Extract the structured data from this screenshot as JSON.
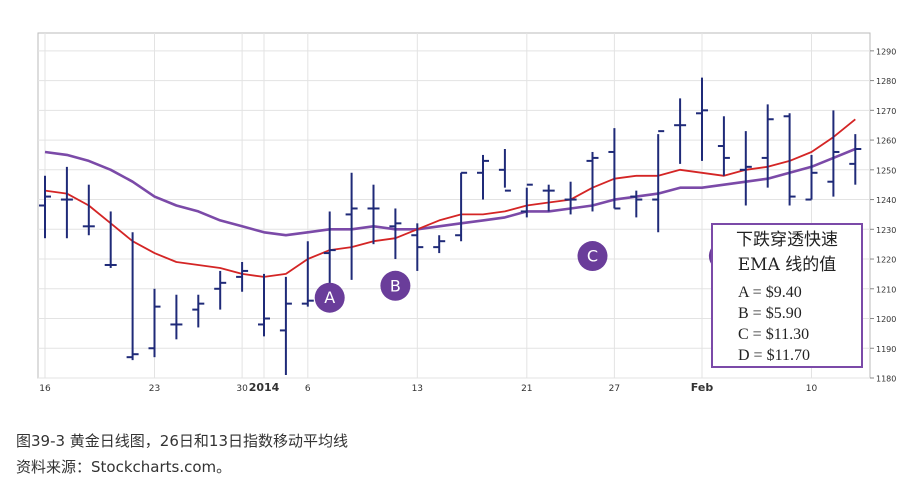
{
  "chart_data": {
    "type": "ohlc",
    "title": "",
    "y_axis": {
      "side": "right",
      "min": 1180,
      "max": 1296,
      "ticks": [
        1180,
        1190,
        1200,
        1210,
        1220,
        1230,
        1240,
        1250,
        1260,
        1270,
        1280,
        1290
      ]
    },
    "x_ticks": [
      {
        "label": "16",
        "bar": 0,
        "bold": false
      },
      {
        "label": "23",
        "bar": 5,
        "bold": false
      },
      {
        "label": "30",
        "bar": 9,
        "bold": false
      },
      {
        "label": "2014",
        "bar": 10,
        "bold": true
      },
      {
        "label": "6",
        "bar": 12,
        "bold": false
      },
      {
        "label": "13",
        "bar": 17,
        "bold": false
      },
      {
        "label": "21",
        "bar": 22,
        "bold": false
      },
      {
        "label": "27",
        "bar": 26,
        "bold": false
      },
      {
        "label": "Feb",
        "bar": 30,
        "bold": true
      },
      {
        "label": "10",
        "bar": 35,
        "bold": false
      }
    ],
    "bars": [
      {
        "o": 1238,
        "h": 1248,
        "l": 1227,
        "c": 1241
      },
      {
        "o": 1240,
        "h": 1251,
        "l": 1227,
        "c": 1240
      },
      {
        "o": 1231,
        "h": 1245,
        "l": 1228,
        "c": 1231
      },
      {
        "o": 1218,
        "h": 1236,
        "l": 1217,
        "c": 1218
      },
      {
        "o": 1187,
        "h": 1229,
        "l": 1186,
        "c": 1188
      },
      {
        "o": 1190,
        "h": 1210,
        "l": 1187,
        "c": 1204
      },
      {
        "o": 1198,
        "h": 1208,
        "l": 1193,
        "c": 1198
      },
      {
        "o": 1203,
        "h": 1208,
        "l": 1197,
        "c": 1205
      },
      {
        "o": 1210,
        "h": 1216,
        "l": 1203,
        "c": 1212
      },
      {
        "o": 1214,
        "h": 1219,
        "l": 1209,
        "c": 1216
      },
      {
        "o": 1198,
        "h": 1215,
        "l": 1194,
        "c": 1200
      },
      {
        "o": 1196,
        "h": 1214,
        "l": 1181,
        "c": 1205
      },
      {
        "o": 1205,
        "h": 1226,
        "l": 1204,
        "c": 1206
      },
      {
        "o": 1222,
        "h": 1236,
        "l": 1207,
        "c": 1223
      },
      {
        "o": 1235,
        "h": 1249,
        "l": 1213,
        "c": 1237
      },
      {
        "o": 1237,
        "h": 1245,
        "l": 1225,
        "c": 1237
      },
      {
        "o": 1231,
        "h": 1237,
        "l": 1220,
        "c": 1232
      },
      {
        "o": 1228,
        "h": 1232,
        "l": 1216,
        "c": 1224
      },
      {
        "o": 1224,
        "h": 1228,
        "l": 1222,
        "c": 1226
      },
      {
        "o": 1228,
        "h": 1249,
        "l": 1226,
        "c": 1249
      },
      {
        "o": 1249,
        "h": 1255,
        "l": 1240,
        "c": 1253
      },
      {
        "o": 1250,
        "h": 1257,
        "l": 1244,
        "c": 1243
      },
      {
        "o": 1236,
        "h": 1244,
        "l": 1234,
        "c": 1245
      },
      {
        "o": 1243,
        "h": 1245,
        "l": 1236,
        "c": 1243
      },
      {
        "o": 1240,
        "h": 1246,
        "l": 1235,
        "c": 1240
      },
      {
        "o": 1253,
        "h": 1256,
        "l": 1236,
        "c": 1254
      },
      {
        "o": 1256,
        "h": 1264,
        "l": 1237,
        "c": 1237
      },
      {
        "o": 1241,
        "h": 1243,
        "l": 1234,
        "c": 1240
      },
      {
        "o": 1240,
        "h": 1262,
        "l": 1229,
        "c": 1263
      },
      {
        "o": 1265,
        "h": 1274,
        "l": 1252,
        "c": 1265
      },
      {
        "o": 1269,
        "h": 1281,
        "l": 1253,
        "c": 1270
      },
      {
        "o": 1258,
        "h": 1268,
        "l": 1248,
        "c": 1254
      },
      {
        "o": 1250,
        "h": 1263,
        "l": 1238,
        "c": 1251
      },
      {
        "o": 1254,
        "h": 1272,
        "l": 1244,
        "c": 1267
      },
      {
        "o": 1268,
        "h": 1269,
        "l": 1238,
        "c": 1241
      },
      {
        "o": 1240,
        "h": 1255,
        "l": 1240,
        "c": 1249
      },
      {
        "o": 1246,
        "h": 1270,
        "l": 1241,
        "c": 1256
      },
      {
        "o": 1252,
        "h": 1262,
        "l": 1245,
        "c": 1257
      }
    ],
    "series": [
      {
        "name": "26日指数移动平均线",
        "color": "#7b4aa8",
        "values": [
          1256,
          1255,
          1253,
          1250,
          1246,
          1241,
          1238,
          1236,
          1233,
          1231,
          1229,
          1228,
          1229,
          1230,
          1230,
          1231,
          1230,
          1230,
          1231,
          1232,
          1233,
          1234,
          1236,
          1236,
          1237,
          1238,
          1240,
          1241,
          1242,
          1244,
          1244,
          1245,
          1246,
          1247,
          1249,
          1251,
          1254,
          1257
        ]
      },
      {
        "name": "13日指数移动平均线",
        "color": "#d42525",
        "values": [
          1243,
          1242,
          1238,
          1232,
          1226,
          1222,
          1219,
          1218,
          1217,
          1215,
          1214,
          1215,
          1220,
          1223,
          1224,
          1226,
          1227,
          1230,
          1233,
          1235,
          1235,
          1236,
          1238,
          1239,
          1240,
          1244,
          1247,
          1248,
          1248,
          1250,
          1249,
          1248,
          1250,
          1251,
          1253,
          1256,
          1261,
          1267
        ]
      }
    ],
    "markers": [
      {
        "label": "A",
        "bar": 13,
        "value": 1207
      },
      {
        "label": "B",
        "bar": 16,
        "value": 1211
      },
      {
        "label": "C",
        "bar": 25,
        "value": 1221
      },
      {
        "label": "D",
        "bar": 31,
        "value": 1221
      }
    ],
    "annotation": {
      "title_line1": "下跌穿透快速",
      "title_line2": "EMA 线的值",
      "items": [
        "A = $9.40",
        "B = $5.90",
        "C = $11.30",
        "D = $11.70"
      ]
    }
  },
  "caption": {
    "line1": "图39-3    黄金日线图，26日和13日指数移动平均线",
    "line2": "资料来源：Stockcharts.com。"
  }
}
